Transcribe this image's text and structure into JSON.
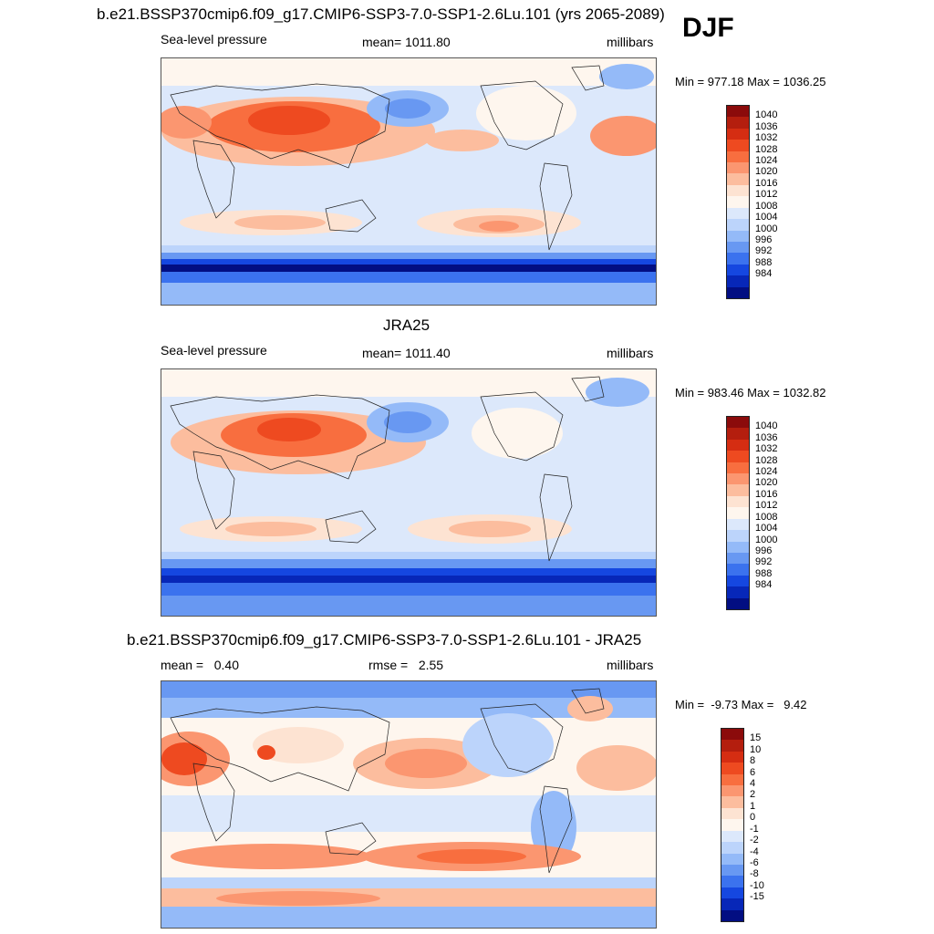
{
  "season": "DJF",
  "panels": [
    {
      "title": "b.e21.BSSP370cmip6.f09_g17.CMIP6-SSP3-7.0-SSP1-2.6Lu.101 (yrs 2065-2089)",
      "left_label": "Sea-level pressure",
      "center_label": "mean= 1011.80",
      "right_label": "millibars",
      "minmax": "Min = 977.18 Max = 1036.25",
      "colorbar_labels": [
        "1040",
        "1036",
        "1032",
        "1028",
        "1024",
        "1020",
        "1016",
        "1012",
        "1008",
        "1004",
        "1000",
        "996",
        "992",
        "988",
        "984"
      ],
      "colorbar_colors": [
        "#8b0b0b",
        "#b41e0e",
        "#d52d12",
        "#ee4a20",
        "#f86e3f",
        "#fb9670",
        "#fcbd9e",
        "#fde3d2",
        "#fef6ee",
        "#dce8fb",
        "#bcd4fb",
        "#94baf8",
        "#6898f2",
        "#3b72ee",
        "#1547e0",
        "#0727b8",
        "#020e82"
      ]
    },
    {
      "title": "JRA25",
      "left_label": "Sea-level pressure",
      "center_label": "mean= 1011.40",
      "right_label": "millibars",
      "minmax": "Min = 983.46 Max = 1032.82",
      "colorbar_labels": [
        "1040",
        "1036",
        "1032",
        "1028",
        "1024",
        "1020",
        "1016",
        "1012",
        "1008",
        "1004",
        "1000",
        "996",
        "992",
        "988",
        "984"
      ],
      "colorbar_colors": [
        "#8b0b0b",
        "#b41e0e",
        "#d52d12",
        "#ee4a20",
        "#f86e3f",
        "#fb9670",
        "#fcbd9e",
        "#fde3d2",
        "#fef6ee",
        "#dce8fb",
        "#bcd4fb",
        "#94baf8",
        "#6898f2",
        "#3b72ee",
        "#1547e0",
        "#0727b8",
        "#020e82"
      ]
    },
    {
      "title": "b.e21.BSSP370cmip6.f09_g17.CMIP6-SSP3-7.0-SSP1-2.6Lu.101 - JRA25",
      "left_label": "mean =   0.40",
      "center_label": "rmse =   2.55",
      "right_label": "millibars",
      "minmax": "Min =  -9.73 Max =   9.42",
      "colorbar_labels": [
        "15",
        "10",
        "8",
        "6",
        "4",
        "2",
        "1",
        "0",
        "-1",
        "-2",
        "-4",
        "-6",
        "-8",
        "-10",
        "-15"
      ],
      "colorbar_colors": [
        "#8b0b0b",
        "#b41e0e",
        "#d52d12",
        "#ee4a20",
        "#f86e3f",
        "#fb9670",
        "#fcbd9e",
        "#fde3d2",
        "#fef6ee",
        "#dce8fb",
        "#bcd4fb",
        "#94baf8",
        "#6898f2",
        "#3b72ee",
        "#1547e0",
        "#0727b8",
        "#020e82"
      ]
    }
  ]
}
